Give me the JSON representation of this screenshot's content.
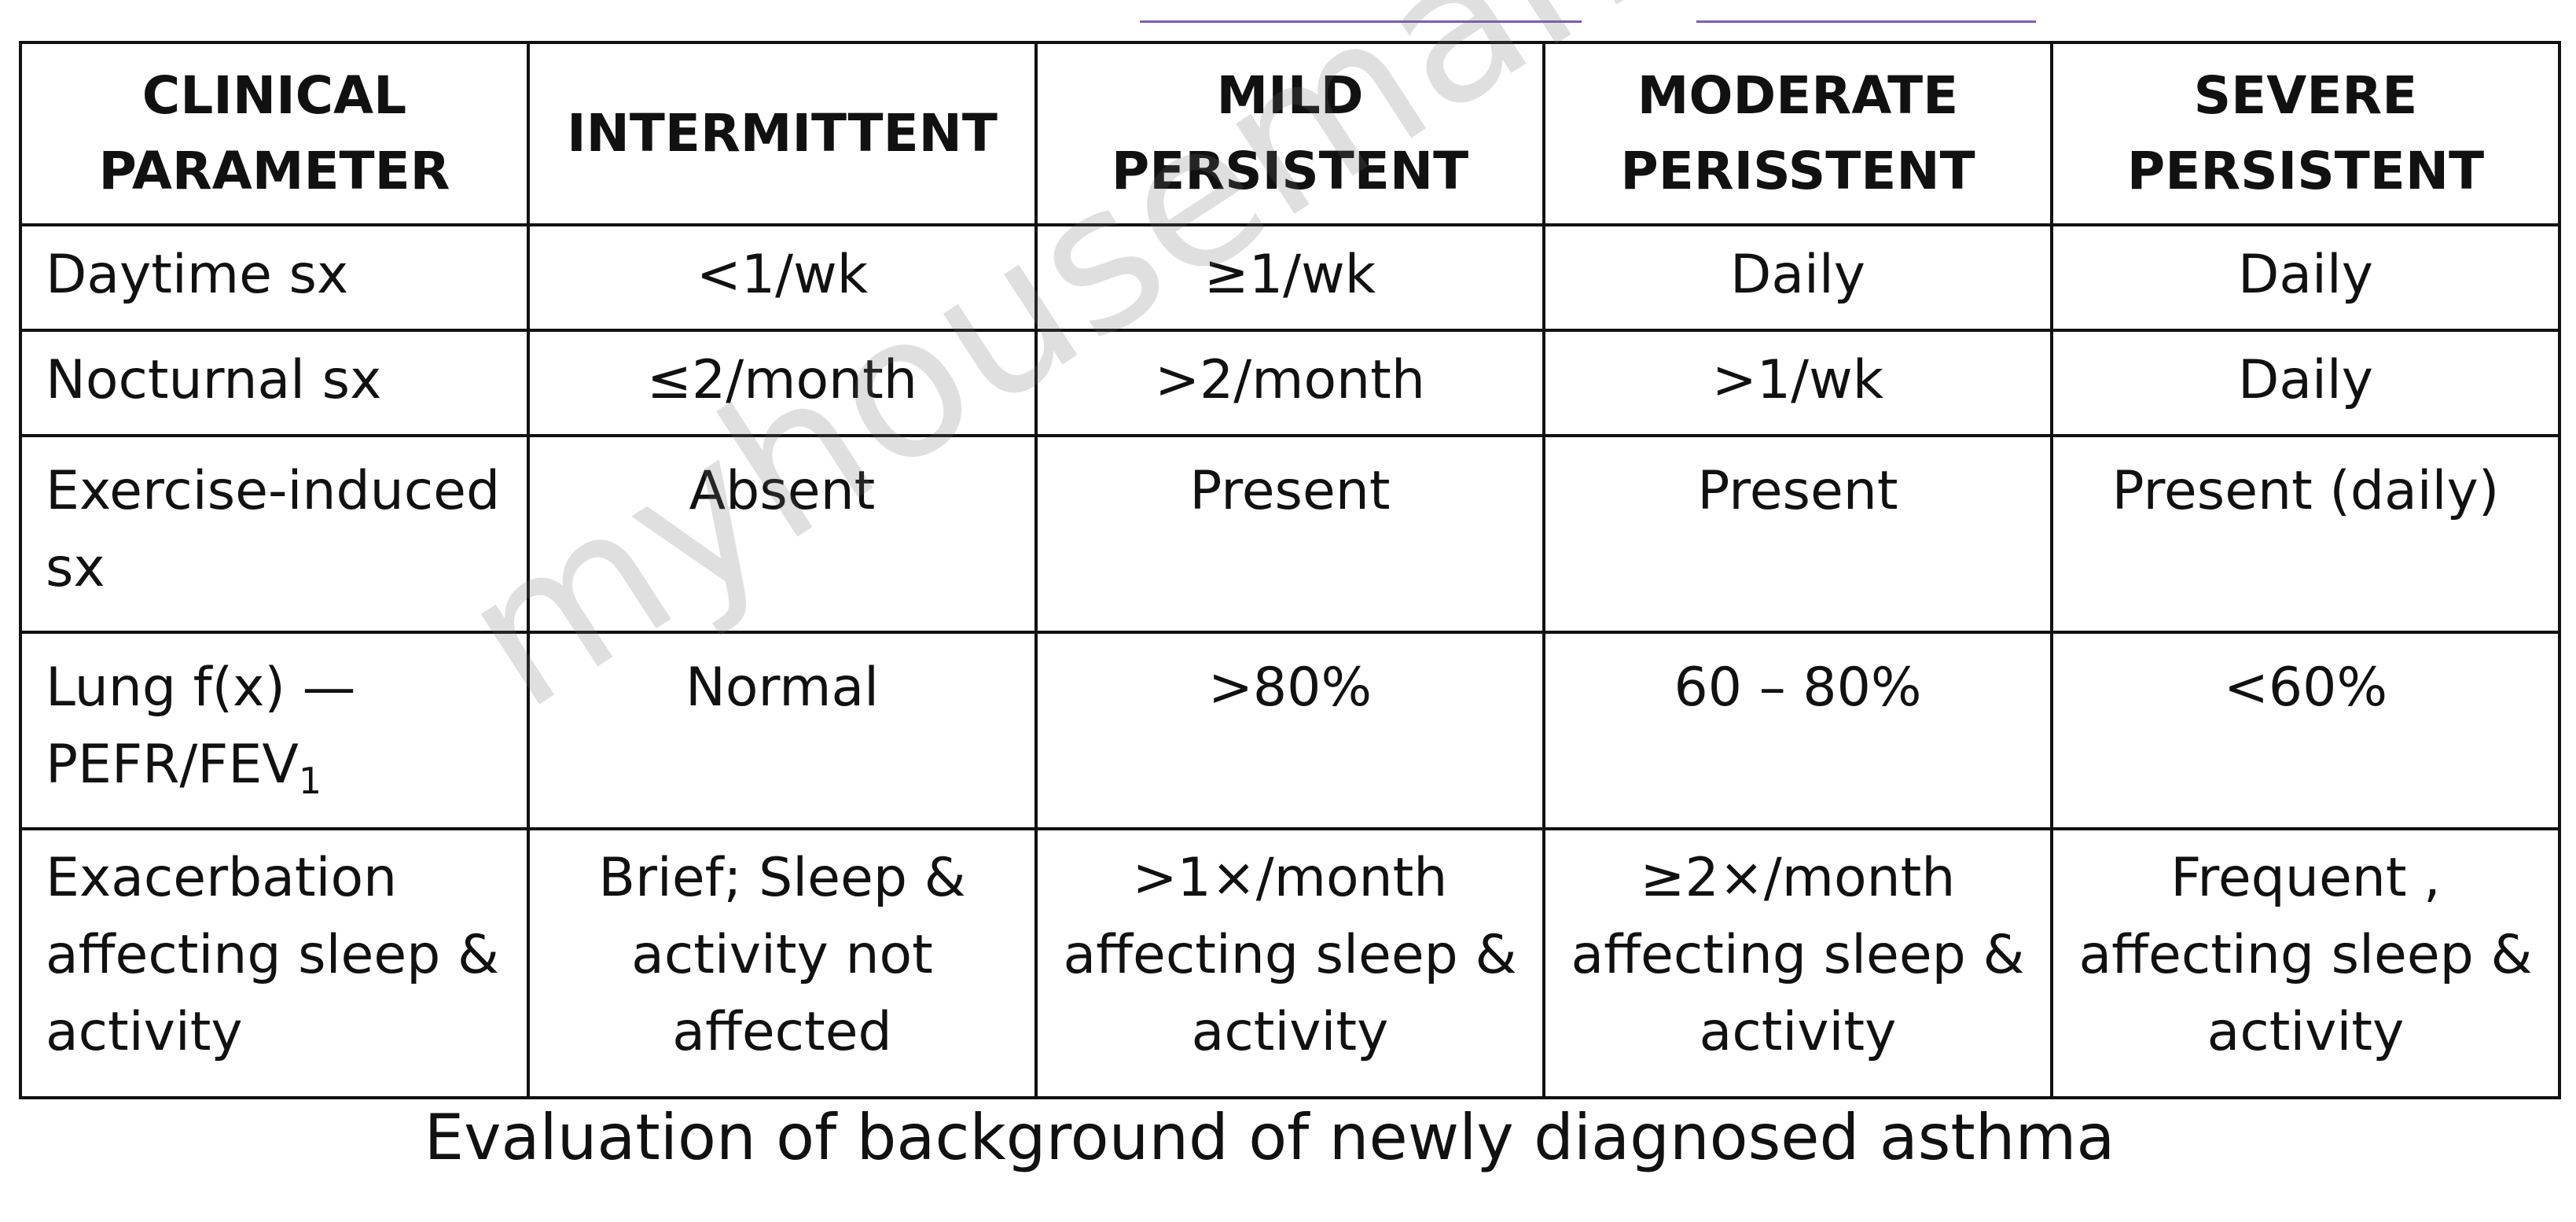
{
  "headers": [
    "CLINICAL\nPARAMETER",
    "INTERMITTENT",
    "MILD\nPERSISTENT",
    "MODERATE\nPERISSTENT",
    "SEVERE\nPERSISTENT"
  ],
  "rows": [
    {
      "parameter": "Daytime sx",
      "values": [
        "<1/wk",
        "≥1/wk",
        "Daily",
        "Daily"
      ]
    },
    {
      "parameter": "Nocturnal sx",
      "values": [
        "≤2/month",
        ">2/month",
        ">1/wk",
        "Daily"
      ]
    },
    {
      "parameter": "Exercise-induced sx",
      "values": [
        "Absent",
        "Present",
        "Present",
        "Present (daily)"
      ]
    },
    {
      "parameter_line1": "Lung f(x) —",
      "parameter_line2": "PEFR/FEV",
      "parameter_subscript": "1",
      "values": [
        "Normal",
        ">80%",
        "60 – 80%",
        "<60%"
      ]
    },
    {
      "parameter": "Exacerbation affecting sleep & activity",
      "values": [
        "Brief; Sleep & activity not affected",
        ">1×/month affecting sleep & activity",
        "≥2×/month affecting sleep & activity",
        "Frequent , affecting sleep & activity"
      ]
    }
  ],
  "caption": "Evaluation of background of newly diagnosed asthma",
  "watermark": "myhouseman.my",
  "colors": {
    "border": "#111111",
    "decorative_line": "#7b5fb0",
    "watermark": "#6e6e6e"
  }
}
